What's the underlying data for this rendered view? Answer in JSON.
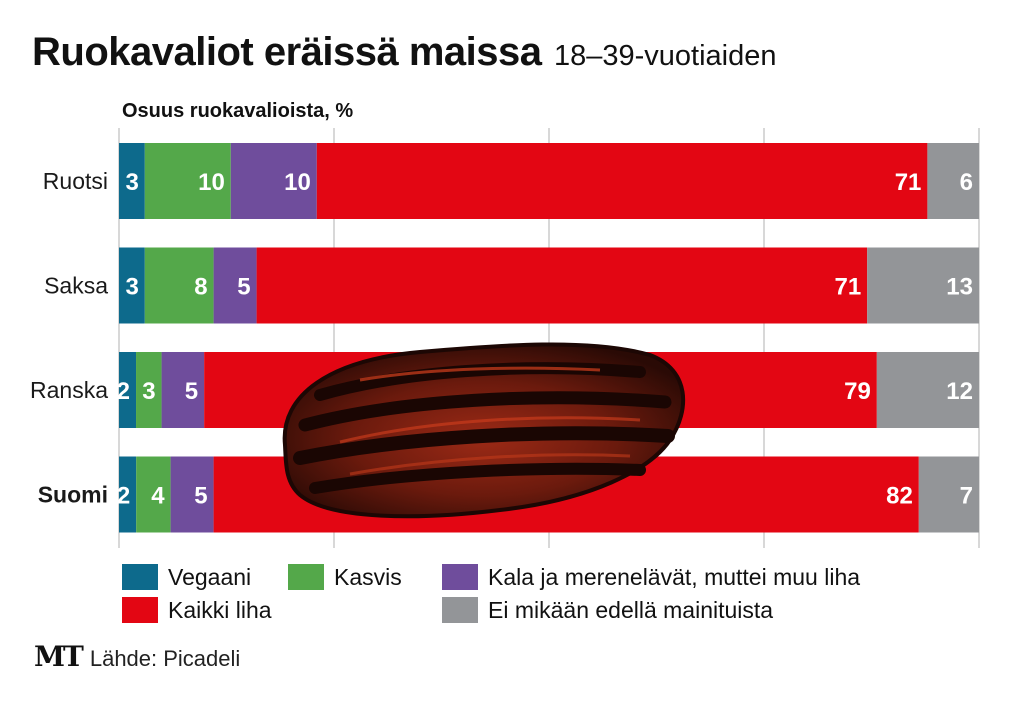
{
  "title": "Ruokavaliot eräissä maissa",
  "subtitle": "18–39-vuotiaiden",
  "logo": "MT",
  "source": "Lähde: Picadeli",
  "colors": {
    "vegaani": "#0d6a8c",
    "kasvis": "#54a84a",
    "kala": "#6f4d9c",
    "liha": "#e30613",
    "ei": "#939598"
  },
  "chart_data": {
    "type": "bar",
    "orientation": "horizontal",
    "stacked": true,
    "ylabel": "Osuus ruokavalioista, %",
    "categories": [
      "Ruotsi",
      "Saksa",
      "Ranska",
      "Suomi"
    ],
    "highlight_category": "Suomi",
    "series": [
      {
        "name": "Vegaani",
        "key": "vegaani",
        "values": [
          3,
          3,
          2,
          2
        ]
      },
      {
        "name": "Kasvis",
        "key": "kasvis",
        "values": [
          10,
          8,
          3,
          4
        ]
      },
      {
        "name": "Kala ja merenelävät, muttei muu liha",
        "key": "kala",
        "values": [
          10,
          5,
          5,
          5
        ]
      },
      {
        "name": "Kaikki liha",
        "key": "liha",
        "values": [
          71,
          71,
          79,
          82
        ]
      },
      {
        "name": "Ei mikään edellä mainituista",
        "key": "ei",
        "values": [
          6,
          13,
          12,
          7
        ]
      }
    ],
    "legend_order": [
      "vegaani",
      "kasvis",
      "kala",
      "liha",
      "ei"
    ],
    "grid": true,
    "decoration": "grilled-meat-patty-image"
  }
}
